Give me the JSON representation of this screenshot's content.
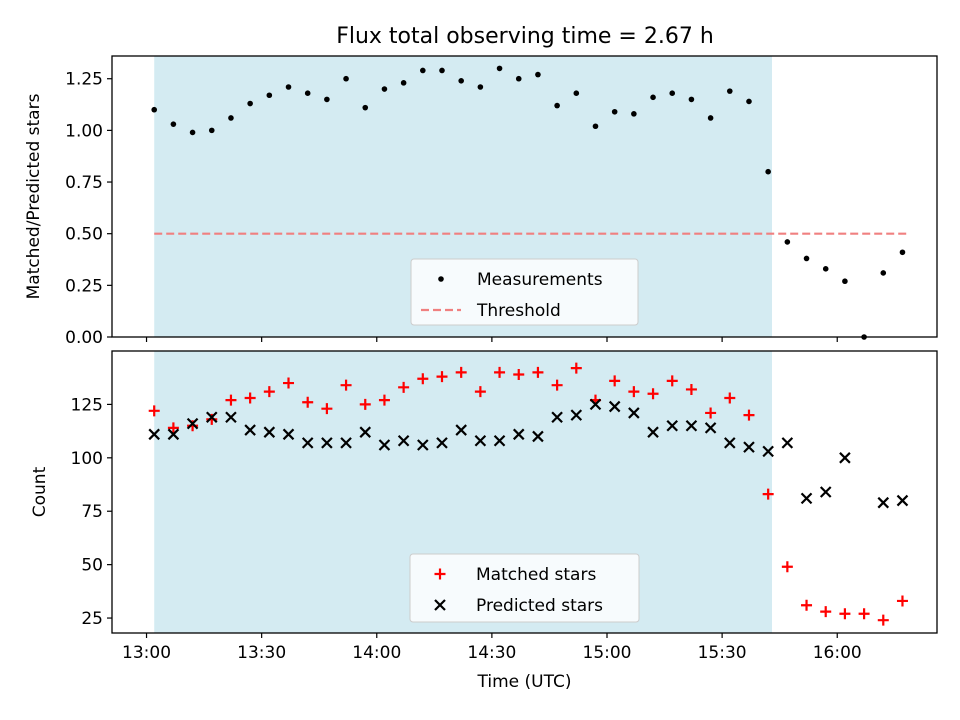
{
  "title": "Flux total observing time = 2.67 h",
  "colors": {
    "span": "#add8e6",
    "measurement": "#000000",
    "threshold": "#f08080",
    "matched": "#ff0000",
    "predicted": "#000000"
  },
  "x_ticks": [
    "13:00",
    "13:30",
    "14:00",
    "14:30",
    "15:00",
    "15:30",
    "16:00"
  ],
  "chart_data": [
    {
      "type": "scatter",
      "name": "ratio-panel",
      "xlabel": "",
      "ylabel": "Matched/Predicted stars",
      "xlim": [
        "12:51",
        "16:26"
      ],
      "ylim": [
        0,
        1.36
      ],
      "yticks": [
        0.0,
        0.25,
        0.5,
        0.75,
        1.0,
        1.25
      ],
      "ytick_labels": [
        "0.00",
        "0.25",
        "0.50",
        "0.75",
        "1.00",
        "1.25"
      ],
      "observing_span": [
        "13:02",
        "15:43"
      ],
      "legend": {
        "placement": "lower-center",
        "entries": [
          "Measurements",
          "Threshold"
        ]
      },
      "threshold": {
        "name": "Threshold",
        "y": 0.5,
        "x_range": [
          "13:02",
          "16:18"
        ]
      },
      "series": [
        {
          "name": "Measurements",
          "x": [
            "13:02",
            "13:07",
            "13:12",
            "13:17",
            "13:22",
            "13:27",
            "13:32",
            "13:37",
            "13:42",
            "13:47",
            "13:52",
            "13:57",
            "14:02",
            "14:07",
            "14:12",
            "14:17",
            "14:22",
            "14:27",
            "14:32",
            "14:37",
            "14:42",
            "14:47",
            "14:52",
            "14:57",
            "15:02",
            "15:07",
            "15:12",
            "15:17",
            "15:22",
            "15:27",
            "15:32",
            "15:37",
            "15:42",
            "15:47",
            "15:52",
            "15:57",
            "16:02",
            "16:07",
            "16:12",
            "16:17"
          ],
          "y": [
            1.1,
            1.03,
            0.99,
            1.0,
            1.06,
            1.13,
            1.17,
            1.21,
            1.18,
            1.15,
            1.25,
            1.11,
            1.2,
            1.23,
            1.29,
            1.29,
            1.24,
            1.21,
            1.3,
            1.25,
            1.27,
            1.12,
            1.18,
            1.02,
            1.09,
            1.08,
            1.16,
            1.18,
            1.15,
            1.06,
            1.19,
            1.14,
            0.8,
            0.46,
            0.38,
            0.33,
            0.27,
            0.0,
            0.31,
            0.41
          ]
        }
      ]
    },
    {
      "type": "scatter",
      "name": "count-panel",
      "xlabel": "Time (UTC)",
      "ylabel": "Count",
      "xlim": [
        "12:51",
        "16:26"
      ],
      "ylim": [
        18,
        150
      ],
      "yticks": [
        25,
        50,
        75,
        100,
        125
      ],
      "ytick_labels": [
        "25",
        "50",
        "75",
        "100",
        "125"
      ],
      "observing_span": [
        "13:02",
        "15:43"
      ],
      "legend": {
        "placement": "lower-center",
        "entries": [
          "Matched stars",
          "Predicted stars"
        ]
      },
      "series": [
        {
          "name": "Matched stars",
          "x": [
            "13:02",
            "13:07",
            "13:12",
            "13:17",
            "13:22",
            "13:27",
            "13:32",
            "13:37",
            "13:42",
            "13:47",
            "13:52",
            "13:57",
            "14:02",
            "14:07",
            "14:12",
            "14:17",
            "14:22",
            "14:27",
            "14:32",
            "14:37",
            "14:42",
            "14:47",
            "14:52",
            "14:57",
            "15:02",
            "15:07",
            "15:12",
            "15:17",
            "15:22",
            "15:27",
            "15:32",
            "15:37",
            "15:42",
            "15:47",
            "15:52",
            "15:57",
            "16:02",
            "16:07",
            "16:12",
            "16:17"
          ],
          "y": [
            122,
            114,
            115,
            118,
            127,
            128,
            131,
            135,
            126,
            123,
            134,
            125,
            127,
            133,
            137,
            138,
            140,
            131,
            140,
            139,
            140,
            134,
            142,
            127,
            136,
            131,
            130,
            136,
            132,
            121,
            128,
            120,
            83,
            49,
            31,
            28,
            27,
            27,
            24,
            33
          ]
        },
        {
          "name": "Predicted stars",
          "x": [
            "13:02",
            "13:07",
            "13:12",
            "13:17",
            "13:22",
            "13:27",
            "13:32",
            "13:37",
            "13:42",
            "13:47",
            "13:52",
            "13:57",
            "14:02",
            "14:07",
            "14:12",
            "14:17",
            "14:22",
            "14:27",
            "14:32",
            "14:37",
            "14:42",
            "14:47",
            "14:52",
            "14:57",
            "15:02",
            "15:07",
            "15:12",
            "15:17",
            "15:22",
            "15:27",
            "15:32",
            "15:37",
            "15:42",
            "15:47",
            "15:52",
            "15:57",
            "16:02",
            "16:12",
            "16:17"
          ],
          "y": [
            111,
            111,
            116,
            119,
            119,
            113,
            112,
            111,
            107,
            107,
            107,
            112,
            106,
            108,
            106,
            107,
            113,
            108,
            108,
            111,
            110,
            119,
            120,
            125,
            124,
            121,
            112,
            115,
            115,
            114,
            107,
            105,
            103,
            107,
            81,
            84,
            100,
            79,
            80
          ]
        }
      ]
    }
  ]
}
